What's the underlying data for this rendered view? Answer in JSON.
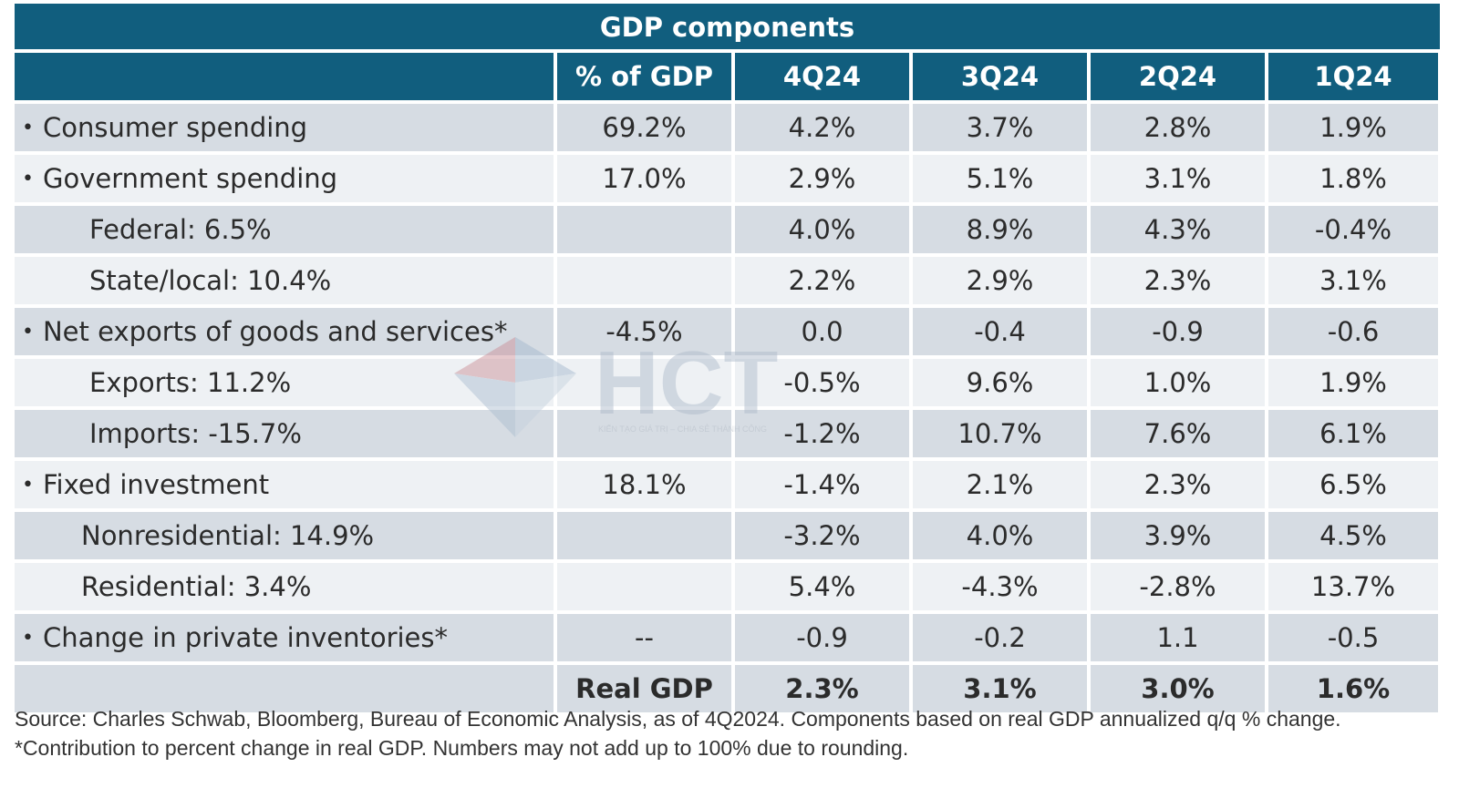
{
  "chart_data": {
    "type": "table",
    "title": "GDP components",
    "columns": [
      "",
      "% of GDP",
      "4Q24",
      "3Q24",
      "2Q24",
      "1Q24"
    ],
    "rows": [
      {
        "label": "Consumer spending",
        "level": 0,
        "share": "69.2%",
        "values": [
          "4.2%",
          "3.7%",
          "2.8%",
          "1.9%"
        ]
      },
      {
        "label": "Government spending",
        "level": 0,
        "share": "17.0%",
        "values": [
          "2.9%",
          "5.1%",
          "3.1%",
          "1.8%"
        ]
      },
      {
        "label": "Federal: 6.5%",
        "level": 1,
        "share": "",
        "values": [
          "4.0%",
          "8.9%",
          "4.3%",
          "-0.4%"
        ]
      },
      {
        "label": "State/local: 10.4%",
        "level": 1,
        "share": "",
        "values": [
          "2.2%",
          "2.9%",
          "2.3%",
          "3.1%"
        ]
      },
      {
        "label": "Net exports of goods and services*",
        "level": 0,
        "share": "-4.5%",
        "values": [
          "0.0",
          "-0.4",
          "-0.9",
          "-0.6"
        ]
      },
      {
        "label": "Exports: 11.2%",
        "level": 1,
        "share": "",
        "values": [
          "-0.5%",
          "9.6%",
          "1.0%",
          "1.9%"
        ]
      },
      {
        "label": "Imports: -15.7%",
        "level": 1,
        "share": "",
        "values": [
          "-1.2%",
          "10.7%",
          "7.6%",
          "6.1%"
        ]
      },
      {
        "label": "Fixed investment",
        "level": 0,
        "share": "18.1%",
        "values": [
          "-1.4%",
          "2.1%",
          "2.3%",
          "6.5%"
        ]
      },
      {
        "label": "Nonresidential: 14.9%",
        "level": 2,
        "share": "",
        "values": [
          "-3.2%",
          "4.0%",
          "3.9%",
          "4.5%"
        ]
      },
      {
        "label": "Residential: 3.4%",
        "level": 2,
        "share": "",
        "values": [
          "5.4%",
          "-4.3%",
          "-2.8%",
          "13.7%"
        ]
      },
      {
        "label": "Change in private inventories*",
        "level": 0,
        "share": "--",
        "values": [
          "-0.9",
          "-0.2",
          "1.1",
          "-0.5"
        ]
      }
    ],
    "total": {
      "label": "Real GDP",
      "values": [
        "2.3%",
        "3.1%",
        "3.0%",
        "1.6%"
      ]
    }
  },
  "source_note": "Source: Charles Schwab, Bloomberg, Bureau of Economic Analysis, as of 4Q2024. Components based on real GDP annualized q/q % change. *Contribution to percent change in real GDP. Numbers may not add up to 100% due to rounding.",
  "watermark": {
    "text": "HCT",
    "tagline": "KIẾN TẠO GIÁ TRỊ – CHIA SẺ THÀNH CÔNG"
  },
  "colors": {
    "header": "#115e7e",
    "row_dark": "#d6dce3",
    "row_light": "#eef1f4"
  },
  "bullet": "•"
}
